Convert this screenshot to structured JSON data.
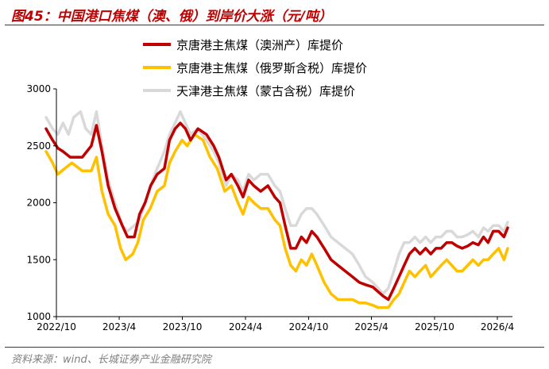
{
  "figure": {
    "title": "图45：中国港口焦煤（澳、俄）到岸价大涨（元/吨）",
    "source": "资料来源：wind、长城证券产业金融研究院"
  },
  "colors": {
    "title_red": "#c00000",
    "series_au": "#c00000",
    "series_ru": "#ffc000",
    "series_mn": "#d9d9d9"
  },
  "chart_data": {
    "type": "line",
    "title": "",
    "xlabel": "",
    "ylabel": "",
    "ylim": [
      1000,
      3000
    ],
    "yticks": [
      1000,
      1500,
      2000,
      2500,
      3000
    ],
    "xticks": [
      "2022/10",
      "2023/4",
      "2023/10",
      "2024/4",
      "2024/10",
      "2025/4",
      "2025/10",
      "2026/4"
    ],
    "xtick_dates": [
      "2022-10-01",
      "2023-04-01",
      "2023-10-01",
      "2024-04-01",
      "2024-10-01",
      "2025-04-01",
      "2025-10-01",
      "2026-04-01"
    ],
    "legend_position": "top",
    "grid": false,
    "series": [
      {
        "name": "京唐港主焦煤（澳洲产）库提价",
        "color": "#c00000",
        "points": [
          [
            "2022-09-01",
            2650
          ],
          [
            "2022-09-20",
            2550
          ],
          [
            "2022-10-05",
            2480
          ],
          [
            "2022-10-20",
            2450
          ],
          [
            "2022-11-10",
            2400
          ],
          [
            "2022-12-15",
            2400
          ],
          [
            "2023-01-10",
            2500
          ],
          [
            "2023-01-25",
            2680
          ],
          [
            "2023-02-10",
            2450
          ],
          [
            "2023-02-28",
            2150
          ],
          [
            "2023-03-20",
            1950
          ],
          [
            "2023-04-10",
            1800
          ],
          [
            "2023-04-25",
            1700
          ],
          [
            "2023-05-15",
            1700
          ],
          [
            "2023-05-30",
            1900
          ],
          [
            "2023-06-15",
            2000
          ],
          [
            "2023-07-01",
            2150
          ],
          [
            "2023-07-20",
            2250
          ],
          [
            "2023-08-10",
            2300
          ],
          [
            "2023-08-25",
            2550
          ],
          [
            "2023-09-10",
            2650
          ],
          [
            "2023-09-25",
            2700
          ],
          [
            "2023-10-10",
            2650
          ],
          [
            "2023-10-25",
            2550
          ],
          [
            "2023-11-15",
            2650
          ],
          [
            "2023-12-10",
            2600
          ],
          [
            "2023-12-31",
            2500
          ],
          [
            "2024-01-15",
            2400
          ],
          [
            "2024-02-05",
            2200
          ],
          [
            "2024-02-20",
            2250
          ],
          [
            "2024-03-10",
            2150
          ],
          [
            "2024-03-25",
            2050
          ],
          [
            "2024-04-10",
            2200
          ],
          [
            "2024-04-25",
            2150
          ],
          [
            "2024-05-15",
            2100
          ],
          [
            "2024-06-05",
            2150
          ],
          [
            "2024-06-25",
            2050
          ],
          [
            "2024-07-10",
            2000
          ],
          [
            "2024-07-25",
            1800
          ],
          [
            "2024-08-10",
            1600
          ],
          [
            "2024-08-25",
            1600
          ],
          [
            "2024-09-10",
            1700
          ],
          [
            "2024-09-25",
            1650
          ],
          [
            "2024-10-10",
            1750
          ],
          [
            "2024-10-25",
            1700
          ],
          [
            "2024-11-15",
            1600
          ],
          [
            "2024-12-05",
            1500
          ],
          [
            "2024-12-25",
            1450
          ],
          [
            "2025-01-15",
            1400
          ],
          [
            "2025-02-05",
            1350
          ],
          [
            "2025-02-25",
            1300
          ],
          [
            "2025-03-15",
            1280
          ],
          [
            "2025-04-05",
            1260
          ],
          [
            "2025-04-20",
            1220
          ],
          [
            "2025-05-05",
            1180
          ],
          [
            "2025-05-20",
            1150
          ],
          [
            "2025-06-05",
            1250
          ],
          [
            "2025-06-20",
            1350
          ],
          [
            "2025-07-05",
            1450
          ],
          [
            "2025-07-20",
            1550
          ],
          [
            "2025-08-05",
            1600
          ],
          [
            "2025-08-20",
            1550
          ],
          [
            "2025-09-05",
            1600
          ],
          [
            "2025-09-20",
            1550
          ],
          [
            "2025-10-05",
            1600
          ],
          [
            "2025-10-20",
            1600
          ],
          [
            "2025-11-05",
            1650
          ],
          [
            "2025-11-20",
            1650
          ],
          [
            "2025-12-05",
            1620
          ],
          [
            "2025-12-20",
            1600
          ],
          [
            "2026-01-05",
            1620
          ],
          [
            "2026-01-20",
            1650
          ],
          [
            "2026-02-05",
            1630
          ],
          [
            "2026-02-20",
            1700
          ],
          [
            "2026-03-05",
            1650
          ],
          [
            "2026-03-20",
            1750
          ],
          [
            "2026-04-05",
            1750
          ],
          [
            "2026-04-20",
            1700
          ],
          [
            "2026-05-01",
            1780
          ]
        ]
      },
      {
        "name": "京唐港主焦煤（俄罗斯含税）库提价",
        "color": "#ffc000",
        "points": [
          [
            "2022-09-01",
            2450
          ],
          [
            "2022-09-20",
            2350
          ],
          [
            "2022-10-05",
            2250
          ],
          [
            "2022-10-25",
            2300
          ],
          [
            "2022-11-15",
            2350
          ],
          [
            "2022-12-15",
            2280
          ],
          [
            "2023-01-10",
            2280
          ],
          [
            "2023-01-25",
            2400
          ],
          [
            "2023-02-10",
            2100
          ],
          [
            "2023-02-28",
            1900
          ],
          [
            "2023-03-20",
            1800
          ],
          [
            "2023-04-05",
            1600
          ],
          [
            "2023-04-20",
            1500
          ],
          [
            "2023-05-10",
            1550
          ],
          [
            "2023-05-25",
            1650
          ],
          [
            "2023-06-10",
            1850
          ],
          [
            "2023-06-30",
            1950
          ],
          [
            "2023-07-20",
            2100
          ],
          [
            "2023-08-10",
            2150
          ],
          [
            "2023-08-25",
            2350
          ],
          [
            "2023-09-10",
            2450
          ],
          [
            "2023-09-30",
            2550
          ],
          [
            "2023-10-15",
            2500
          ],
          [
            "2023-11-05",
            2600
          ],
          [
            "2023-11-30",
            2550
          ],
          [
            "2023-12-20",
            2400
          ],
          [
            "2024-01-10",
            2300
          ],
          [
            "2024-02-01",
            2100
          ],
          [
            "2024-02-20",
            2150
          ],
          [
            "2024-03-10",
            2000
          ],
          [
            "2024-03-25",
            1900
          ],
          [
            "2024-04-10",
            2050
          ],
          [
            "2024-04-25",
            2000
          ],
          [
            "2024-05-15",
            1950
          ],
          [
            "2024-06-05",
            1950
          ],
          [
            "2024-06-25",
            1850
          ],
          [
            "2024-07-10",
            1800
          ],
          [
            "2024-07-25",
            1600
          ],
          [
            "2024-08-10",
            1450
          ],
          [
            "2024-08-25",
            1400
          ],
          [
            "2024-09-10",
            1500
          ],
          [
            "2024-09-25",
            1450
          ],
          [
            "2024-10-10",
            1550
          ],
          [
            "2024-10-25",
            1450
          ],
          [
            "2024-11-15",
            1300
          ],
          [
            "2024-12-05",
            1200
          ],
          [
            "2024-12-25",
            1150
          ],
          [
            "2025-01-15",
            1150
          ],
          [
            "2025-02-05",
            1150
          ],
          [
            "2025-02-25",
            1120
          ],
          [
            "2025-03-15",
            1120
          ],
          [
            "2025-04-05",
            1100
          ],
          [
            "2025-04-20",
            1080
          ],
          [
            "2025-05-05",
            1080
          ],
          [
            "2025-05-20",
            1080
          ],
          [
            "2025-06-05",
            1150
          ],
          [
            "2025-06-20",
            1200
          ],
          [
            "2025-07-05",
            1300
          ],
          [
            "2025-07-20",
            1400
          ],
          [
            "2025-08-05",
            1350
          ],
          [
            "2025-08-20",
            1400
          ],
          [
            "2025-09-05",
            1450
          ],
          [
            "2025-09-20",
            1350
          ],
          [
            "2025-10-05",
            1400
          ],
          [
            "2025-10-20",
            1450
          ],
          [
            "2025-11-05",
            1500
          ],
          [
            "2025-11-20",
            1450
          ],
          [
            "2025-12-05",
            1400
          ],
          [
            "2025-12-20",
            1400
          ],
          [
            "2026-01-05",
            1450
          ],
          [
            "2026-01-20",
            1500
          ],
          [
            "2026-02-05",
            1450
          ],
          [
            "2026-02-20",
            1500
          ],
          [
            "2026-03-05",
            1500
          ],
          [
            "2026-03-20",
            1550
          ],
          [
            "2026-04-05",
            1600
          ],
          [
            "2026-04-20",
            1500
          ],
          [
            "2026-05-01",
            1600
          ]
        ]
      },
      {
        "name": "天津港主焦煤（蒙古含税）库提价",
        "color": "#d9d9d9",
        "points": [
          [
            "2022-09-01",
            2750
          ],
          [
            "2022-09-20",
            2650
          ],
          [
            "2022-10-05",
            2600
          ],
          [
            "2022-10-20",
            2700
          ],
          [
            "2022-11-05",
            2600
          ],
          [
            "2022-11-20",
            2750
          ],
          [
            "2022-12-10",
            2800
          ],
          [
            "2022-12-25",
            2650
          ],
          [
            "2023-01-10",
            2600
          ],
          [
            "2023-01-25",
            2800
          ],
          [
            "2023-02-10",
            2500
          ],
          [
            "2023-02-28",
            2200
          ],
          [
            "2023-03-20",
            2000
          ],
          [
            "2023-04-10",
            1800
          ],
          [
            "2023-04-25",
            1750
          ],
          [
            "2023-05-15",
            1800
          ],
          [
            "2023-05-30",
            1850
          ],
          [
            "2023-06-15",
            2000
          ],
          [
            "2023-07-01",
            2150
          ],
          [
            "2023-07-20",
            2300
          ],
          [
            "2023-08-10",
            2450
          ],
          [
            "2023-08-25",
            2600
          ],
          [
            "2023-09-10",
            2700
          ],
          [
            "2023-09-25",
            2800
          ],
          [
            "2023-10-10",
            2700
          ],
          [
            "2023-10-25",
            2600
          ],
          [
            "2023-11-15",
            2650
          ],
          [
            "2023-12-10",
            2550
          ],
          [
            "2023-12-31",
            2450
          ],
          [
            "2024-01-15",
            2350
          ],
          [
            "2024-02-05",
            2150
          ],
          [
            "2024-02-20",
            2250
          ],
          [
            "2024-03-10",
            2200
          ],
          [
            "2024-03-25",
            2100
          ],
          [
            "2024-04-10",
            2250
          ],
          [
            "2024-04-25",
            2200
          ],
          [
            "2024-05-15",
            2250
          ],
          [
            "2024-06-05",
            2250
          ],
          [
            "2024-06-25",
            2150
          ],
          [
            "2024-07-10",
            2100
          ],
          [
            "2024-07-25",
            1950
          ],
          [
            "2024-08-10",
            1800
          ],
          [
            "2024-08-25",
            1800
          ],
          [
            "2024-09-10",
            1900
          ],
          [
            "2024-09-25",
            1950
          ],
          [
            "2024-10-10",
            1950
          ],
          [
            "2024-10-25",
            1900
          ],
          [
            "2024-11-15",
            1800
          ],
          [
            "2024-12-05",
            1700
          ],
          [
            "2024-12-25",
            1650
          ],
          [
            "2025-01-15",
            1600
          ],
          [
            "2025-02-05",
            1550
          ],
          [
            "2025-02-25",
            1450
          ],
          [
            "2025-03-15",
            1350
          ],
          [
            "2025-04-05",
            1300
          ],
          [
            "2025-04-20",
            1250
          ],
          [
            "2025-05-05",
            1200
          ],
          [
            "2025-05-20",
            1250
          ],
          [
            "2025-06-05",
            1400
          ],
          [
            "2025-06-20",
            1550
          ],
          [
            "2025-07-05",
            1650
          ],
          [
            "2025-07-20",
            1650
          ],
          [
            "2025-08-05",
            1700
          ],
          [
            "2025-08-20",
            1650
          ],
          [
            "2025-09-05",
            1700
          ],
          [
            "2025-09-20",
            1650
          ],
          [
            "2025-10-05",
            1700
          ],
          [
            "2025-10-20",
            1700
          ],
          [
            "2025-11-05",
            1750
          ],
          [
            "2025-11-20",
            1750
          ],
          [
            "2025-12-05",
            1700
          ],
          [
            "2025-12-20",
            1700
          ],
          [
            "2026-01-05",
            1720
          ],
          [
            "2026-01-20",
            1750
          ],
          [
            "2026-02-05",
            1700
          ],
          [
            "2026-02-20",
            1780
          ],
          [
            "2026-03-05",
            1750
          ],
          [
            "2026-03-20",
            1800
          ],
          [
            "2026-04-05",
            1800
          ],
          [
            "2026-04-20",
            1750
          ],
          [
            "2026-05-01",
            1830
          ]
        ]
      }
    ]
  }
}
